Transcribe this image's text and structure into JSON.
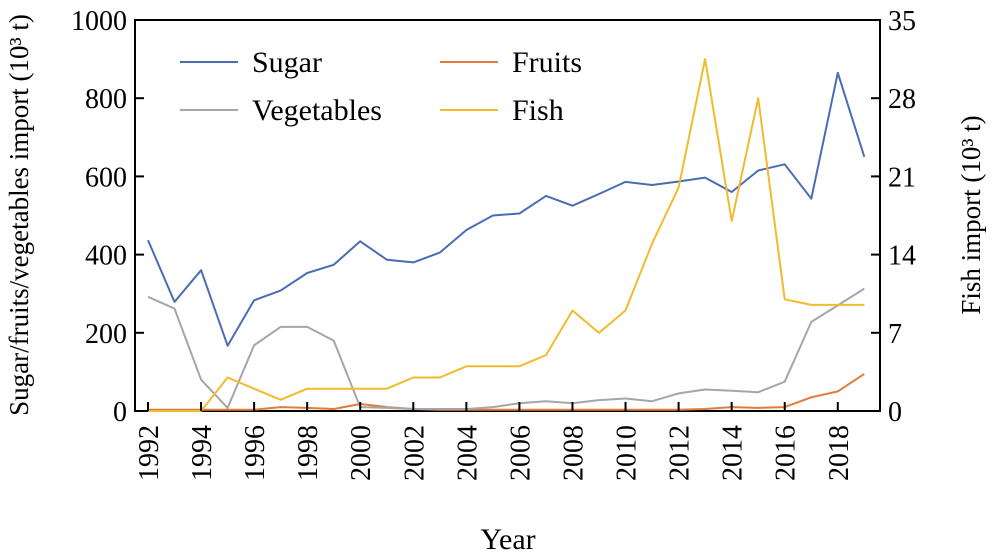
{
  "chart_data": {
    "type": "line",
    "xlabel": "Year",
    "ylabel_left": "Sugar/fruits/vegetables import (10³ t)",
    "ylabel_right": "Fish import (10³ t)",
    "ylim_left": [
      0,
      1000
    ],
    "ylim_right": [
      0,
      35
    ],
    "xlim": [
      1992,
      2019
    ],
    "y_ticks_left": [
      "0",
      "200",
      "400",
      "600",
      "800",
      "1000"
    ],
    "y_ticks_right": [
      "0",
      "7",
      "14",
      "21",
      "28",
      "35"
    ],
    "x_ticks": [
      "1992",
      "1994",
      "1996",
      "1998",
      "2000",
      "2002",
      "2004",
      "2006",
      "2008",
      "2010",
      "2012",
      "2014",
      "2016",
      "2018"
    ],
    "x": [
      1992,
      1993,
      1994,
      1995,
      1996,
      1997,
      1998,
      1999,
      2000,
      2001,
      2002,
      2003,
      2004,
      2005,
      2006,
      2007,
      2008,
      2009,
      2010,
      2011,
      2012,
      2013,
      2014,
      2015,
      2016,
      2017,
      2018,
      2019
    ],
    "series": [
      {
        "name": "Sugar",
        "axis": "left",
        "color": "#4a6cb3",
        "values": [
          437,
          279,
          360,
          167,
          283,
          308,
          353,
          374,
          434,
          387,
          380,
          405,
          463,
          500,
          505,
          550,
          525,
          555,
          586,
          578,
          587,
          597,
          560,
          615,
          631,
          543,
          865,
          650
        ]
      },
      {
        "name": "Fruits",
        "axis": "left",
        "color": "#e07b39",
        "values": [
          3,
          3,
          3,
          3,
          3,
          10,
          8,
          5,
          18,
          10,
          5,
          3,
          3,
          3,
          3,
          3,
          3,
          3,
          3,
          3,
          3,
          5,
          10,
          8,
          10,
          35,
          50,
          95
        ]
      },
      {
        "name": "Vegetables",
        "axis": "left",
        "color": "#a6a6a6",
        "values": [
          292,
          262,
          80,
          8,
          168,
          215,
          215,
          180,
          10,
          8,
          5,
          5,
          5,
          10,
          20,
          25,
          20,
          28,
          32,
          25,
          45,
          55,
          52,
          48,
          75,
          228,
          270,
          313
        ]
      },
      {
        "name": "Fish",
        "axis": "right",
        "color": "#f2bb2e",
        "values": [
          0,
          0,
          0,
          3,
          2,
          1,
          2,
          2,
          2,
          2,
          3,
          3,
          4,
          4,
          4,
          5,
          9,
          7,
          9,
          15,
          20,
          31.5,
          17,
          28,
          10,
          9.5,
          9.5,
          9.5
        ]
      }
    ],
    "legend": {
      "placement": "top-left",
      "columns": 2
    },
    "grid": false
  }
}
